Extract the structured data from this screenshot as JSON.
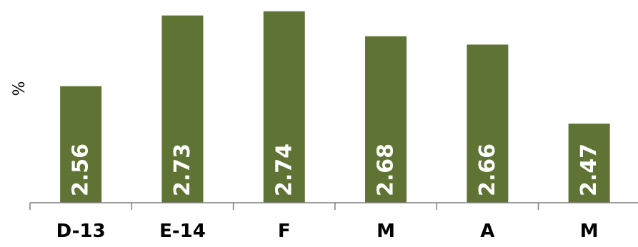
{
  "chart_data": {
    "type": "bar",
    "categories": [
      "D-13",
      "E-14",
      "F",
      "M",
      "A",
      "M"
    ],
    "values": [
      2.56,
      2.73,
      2.74,
      2.68,
      2.66,
      2.47
    ],
    "data_labels": [
      "2.56",
      "2.73",
      "2.74",
      "2.68",
      "2.66",
      "2.47"
    ],
    "title": "",
    "xlabel": "",
    "ylabel": "%",
    "ylim": [
      2.28,
      2.75
    ],
    "grid": false,
    "legend": "none",
    "bar_color": "#5f7335",
    "axis_color": "#7f7f7f",
    "data_label_color": "#ffffff",
    "data_label_orientation": "vertical"
  }
}
